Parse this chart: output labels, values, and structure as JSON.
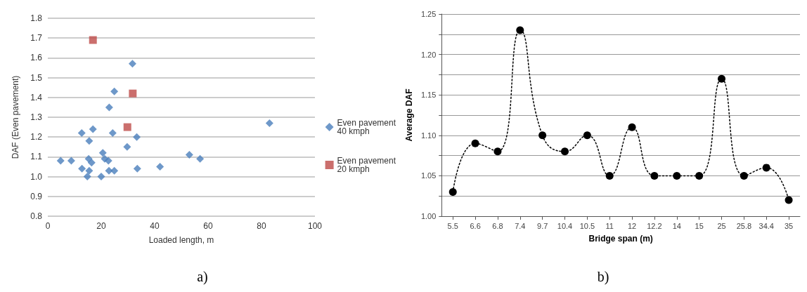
{
  "chart_data": [
    {
      "type": "scatter",
      "xlabel": "Loaded length, m",
      "ylabel": "DAF (Even pavement)",
      "xlim": [
        0,
        100
      ],
      "xticks": [
        0,
        20,
        40,
        60,
        80,
        100
      ],
      "ylim": [
        0.8,
        1.8
      ],
      "yticks": [
        0.8,
        0.9,
        {
          "value": 1.0,
          "label": "1.0"
        },
        1.1,
        1.2,
        1.3,
        1.4,
        1.5,
        1.6,
        1.7,
        1.8
      ],
      "grid": "y",
      "legend": "right",
      "annotations": [
        "a)"
      ],
      "series": [
        {
          "name": "Even pavement\n40 kmph",
          "color": "#4a7ebb",
          "marker": "diamond",
          "x": [
            4.8,
            8.8,
            12.7,
            16.9,
            15.5,
            12.8,
            14.8,
            15.3,
            16.4,
            15.5,
            20.6,
            21.3,
            22.7,
            20.0,
            22.9,
            24.9,
            23.0,
            24.9,
            24.3,
            31.7,
            29.7,
            33.3,
            33.5,
            42,
            53,
            57,
            83
          ],
          "values": [
            1.08,
            1.08,
            1.22,
            1.24,
            1.18,
            1.04,
            1.0,
            1.09,
            1.07,
            1.03,
            1.12,
            1.09,
            1.08,
            1.0,
            1.03,
            1.03,
            1.35,
            1.43,
            1.22,
            1.57,
            1.15,
            1.2,
            1.04,
            1.05,
            1.11,
            1.09,
            1.27
          ]
        },
        {
          "name": "Even pavement\n20 kmph",
          "color": "#be4b48",
          "marker": "square",
          "x": [
            16.9,
            31.8,
            29.8
          ],
          "values": [
            1.69,
            1.42,
            1.25
          ]
        }
      ]
    },
    {
      "type": "line",
      "xlabel": "Bridge span (m)",
      "ylabel": "Average DAF",
      "categories": [
        "5.5",
        "6.6",
        "6.8",
        "7.4",
        "9.7",
        "10.4",
        "10.5",
        "11",
        "12",
        "12.2",
        "14",
        "15",
        "25",
        "25.8",
        "34.4",
        "35"
      ],
      "ylim": [
        1.0,
        1.25
      ],
      "yticks": [
        {
          "value": 1.0,
          "label": "1.00"
        },
        {
          "value": 1.025,
          "label": null
        },
        1.05,
        {
          "value": 1.075,
          "label": null
        },
        {
          "value": 1.1,
          "label": "1.10"
        },
        {
          "value": 1.125,
          "label": null
        },
        1.15,
        {
          "value": 1.175,
          "label": null
        },
        {
          "value": 1.2,
          "label": "1.20"
        },
        {
          "value": 1.225,
          "label": null
        },
        1.25
      ],
      "grid": "y",
      "marker": "circle",
      "line_style": "dotted",
      "annotations": [
        "b)"
      ],
      "series": [
        {
          "color": "#000000",
          "values": [
            1.03,
            1.09,
            1.08,
            1.23,
            1.1,
            1.08,
            1.1,
            1.05,
            1.11,
            1.05,
            1.05,
            1.05,
            1.17,
            1.05,
            1.06,
            1.02
          ]
        }
      ]
    }
  ]
}
